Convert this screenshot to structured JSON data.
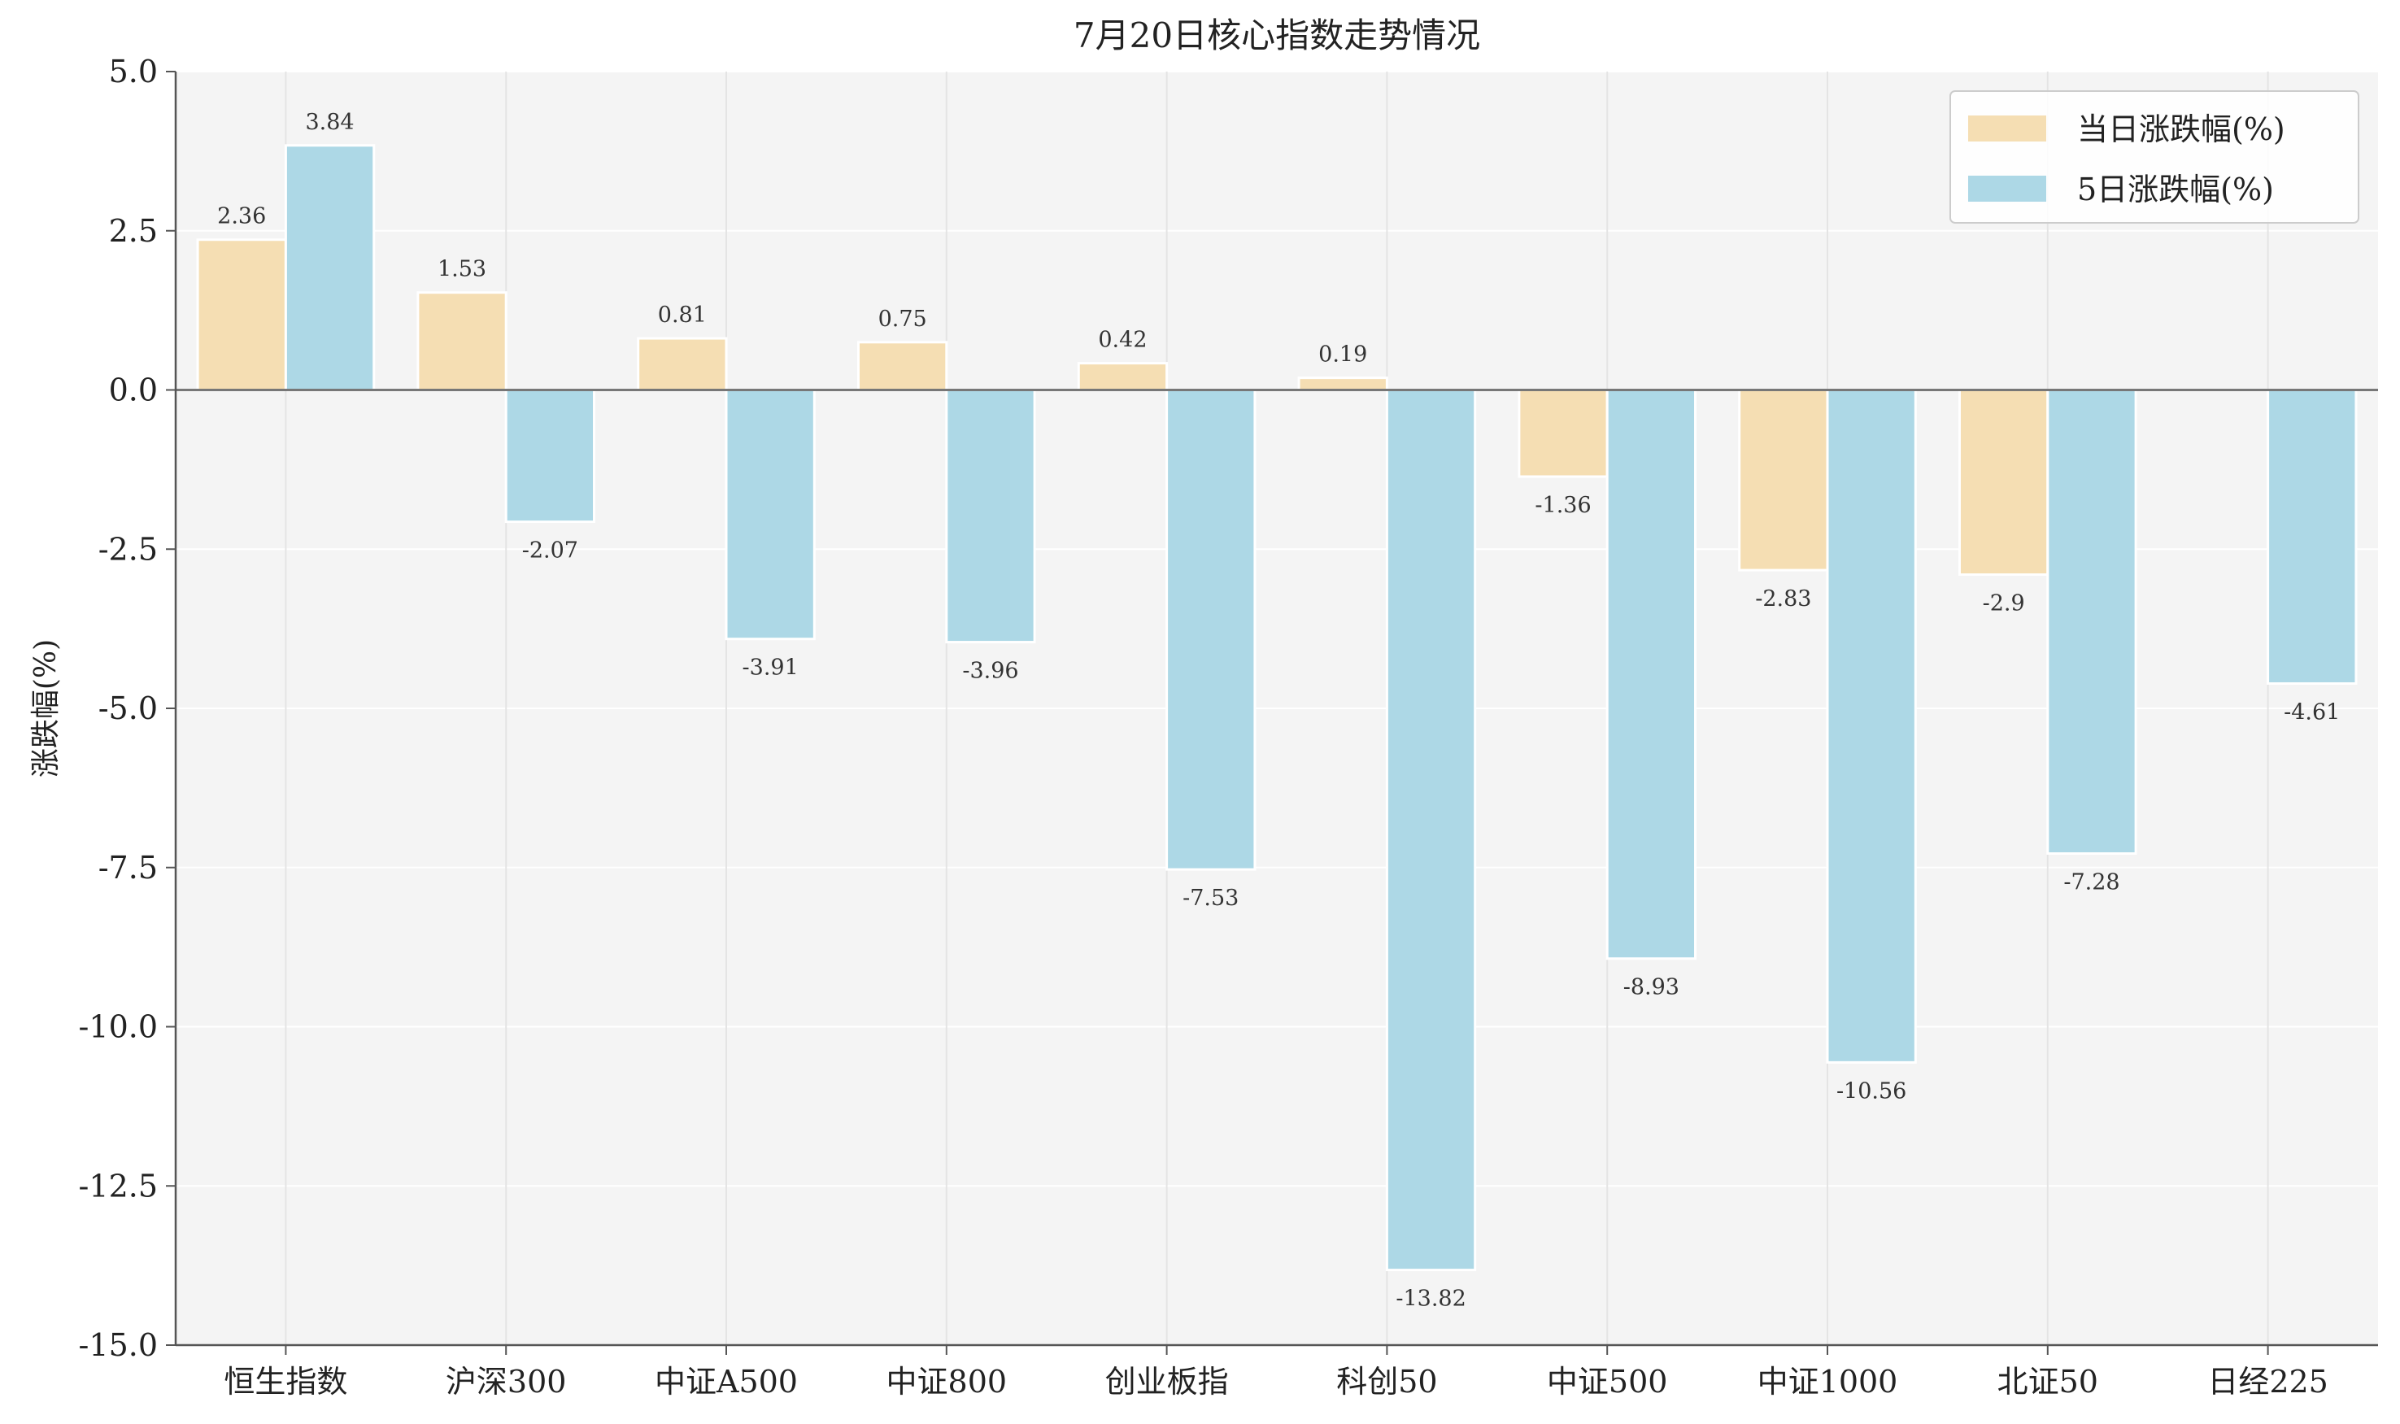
{
  "chart_data": {
    "type": "bar",
    "title": "7月20日核心指数走势情况",
    "xlabel": "",
    "ylabel": "涨跌幅(%)",
    "ylim": [
      -15.0,
      5.0
    ],
    "yticks": [
      "5.0",
      "2.5",
      "0.0",
      "-2.5",
      "-5.0",
      "-7.5",
      "-10.0",
      "-12.5",
      "-15.0"
    ],
    "categories": [
      "恒生指数",
      "沪深300",
      "中证A500",
      "中证800",
      "创业板指",
      "科创50",
      "中证500",
      "中证1000",
      "北证50",
      "日经225"
    ],
    "series": [
      {
        "name": "当日涨跌幅(%)",
        "color": "#f5deb3",
        "values": [
          2.36,
          1.53,
          0.81,
          0.75,
          0.42,
          0.19,
          -1.36,
          -2.83,
          -2.9,
          null
        ],
        "labels": [
          "2.36",
          "1.53",
          "0.81",
          "0.75",
          "0.42",
          "0.19",
          "-1.36",
          "-2.83",
          "-2.9",
          ""
        ]
      },
      {
        "name": "5日涨跌幅(%)",
        "color": "#add8e6",
        "values": [
          3.84,
          -2.07,
          -3.91,
          -3.96,
          -7.53,
          -13.82,
          -8.93,
          -10.56,
          -7.28,
          -4.61
        ],
        "labels": [
          "3.84",
          "-2.07",
          "-3.91",
          "-3.96",
          "-7.53",
          "-13.82",
          "-8.93",
          "-10.56",
          "-7.28",
          "-4.61"
        ]
      }
    ],
    "legend_position": "top-right",
    "grid": true
  }
}
